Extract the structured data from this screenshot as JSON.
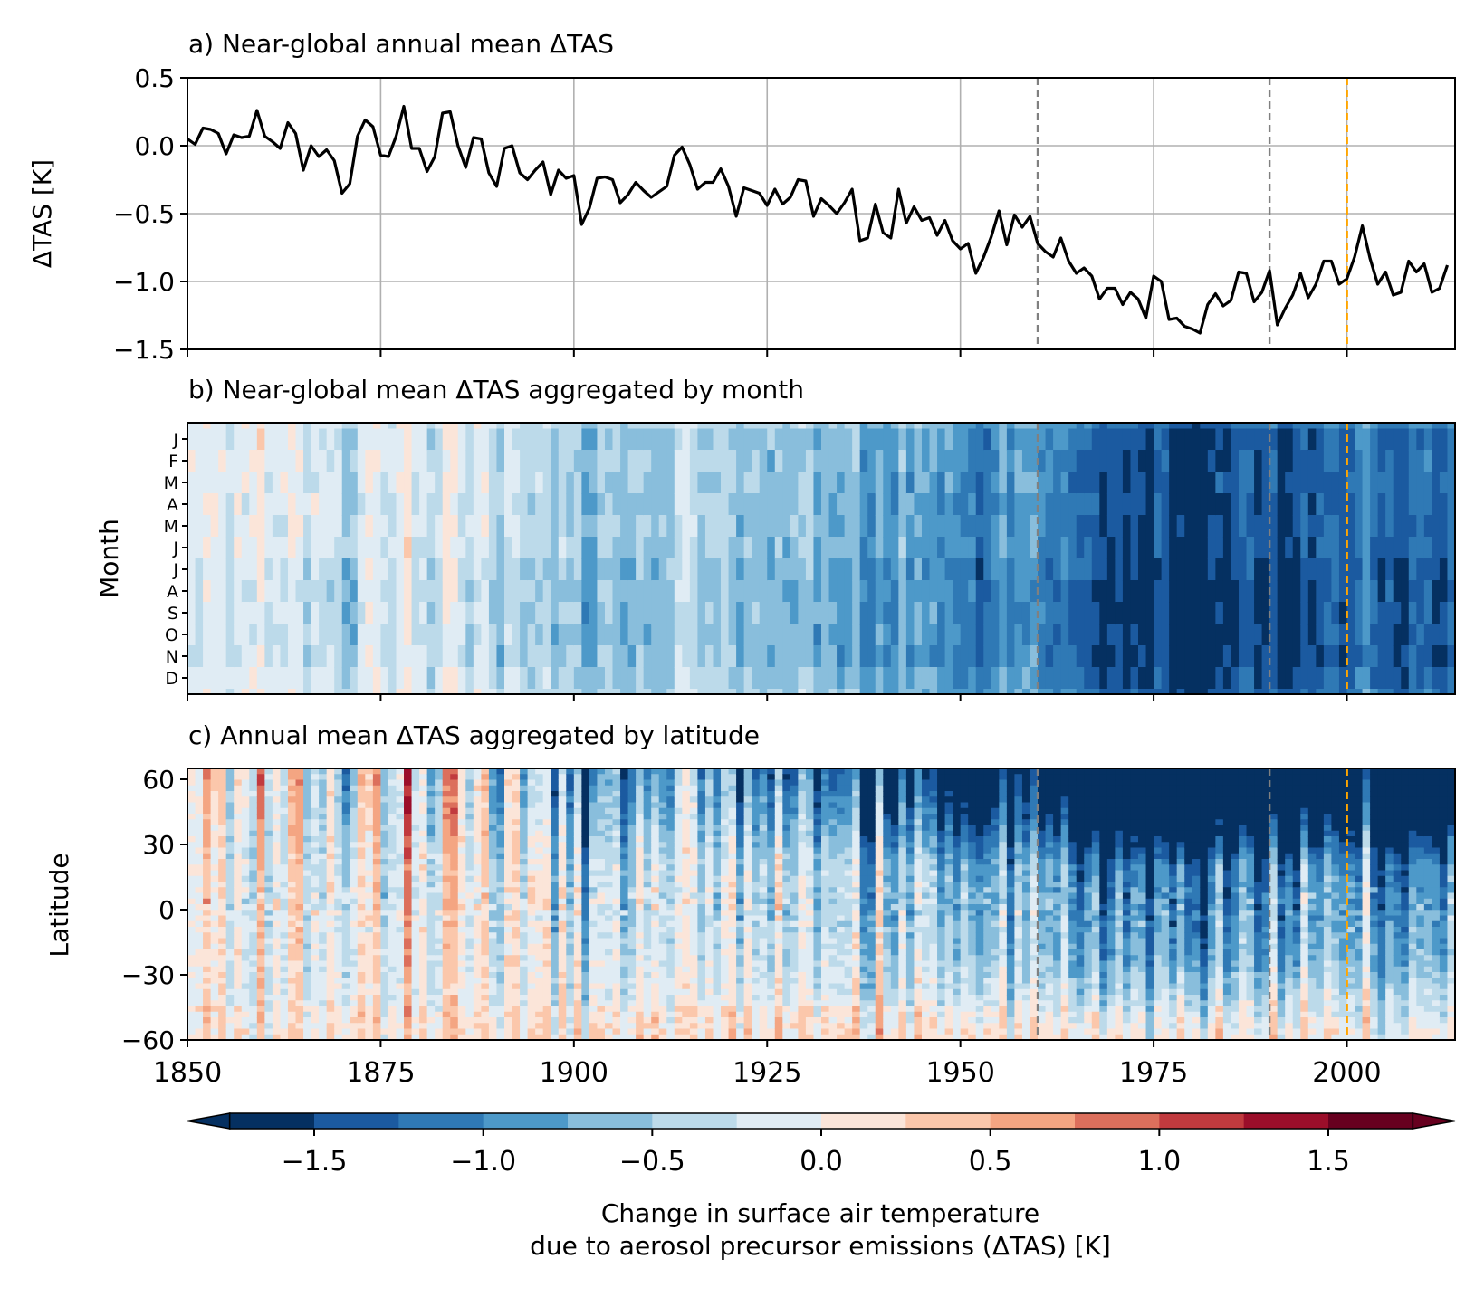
{
  "figure": {
    "colorbar": {
      "label_line1": "Change in surface air temperature",
      "label_line2": "due to aerosol precursor emissions (ΔTAS) [K]",
      "ticks": [
        "−1.5",
        "−1.0",
        "−0.5",
        "0.0",
        "0.5",
        "1.0",
        "1.5"
      ],
      "tick_values": [
        -1.5,
        -1.0,
        -0.5,
        0.0,
        0.5,
        1.0,
        1.5
      ],
      "range": [
        -1.875,
        1.875
      ],
      "levels": [
        -1.75,
        -1.5,
        -1.25,
        -1.0,
        -0.75,
        -0.5,
        -0.25,
        0.0,
        0.25,
        0.5,
        0.75,
        1.0,
        1.25,
        1.5,
        1.75
      ],
      "colors": [
        "#053061",
        "#1b5aa0",
        "#2f79b5",
        "#4d99c9",
        "#89bedc",
        "#bcdaea",
        "#e0ecf4",
        "#fbe5d9",
        "#fbc7ab",
        "#f4a582",
        "#dc6f5c",
        "#c13a3e",
        "#9b0e2a",
        "#67001f"
      ],
      "extend": "both"
    },
    "reference_lines": {
      "gray_years": [
        1960,
        1990
      ],
      "orange_year": 2000,
      "gray_color": "#808080",
      "orange_color": "#ffa500"
    }
  },
  "chart_data": [
    {
      "type": "line",
      "title": "a) Near-global annual mean ΔTAS",
      "xlabel": "",
      "ylabel": "ΔTAS [K]",
      "xlim": [
        1850,
        2014
      ],
      "ylim": [
        -1.5,
        0.5
      ],
      "grid": true,
      "xticks": [
        1850,
        1875,
        1900,
        1925,
        1950,
        1975,
        2000
      ],
      "yticks": [
        0.5,
        0.0,
        -0.5,
        -1.0,
        -1.5
      ],
      "ytick_labels": [
        "0.5",
        "0.0",
        "−0.5",
        "−1.0",
        "−1.5"
      ],
      "series": [
        {
          "color": "#000000",
          "x_start": 1850,
          "x_step": 1,
          "values": [
            0.05,
            0.01,
            0.13,
            0.12,
            0.09,
            -0.06,
            0.08,
            0.06,
            0.07,
            0.26,
            0.07,
            0.03,
            -0.02,
            0.17,
            0.09,
            -0.18,
            0.0,
            -0.08,
            -0.03,
            -0.11,
            -0.35,
            -0.28,
            0.07,
            0.19,
            0.14,
            -0.07,
            -0.08,
            0.07,
            0.29,
            -0.02,
            -0.02,
            -0.19,
            -0.08,
            0.24,
            0.25,
            0.0,
            -0.16,
            0.06,
            0.05,
            -0.2,
            -0.3,
            -0.02,
            0.0,
            -0.2,
            -0.25,
            -0.18,
            -0.12,
            -0.36,
            -0.18,
            -0.24,
            -0.22,
            -0.58,
            -0.46,
            -0.24,
            -0.23,
            -0.25,
            -0.42,
            -0.36,
            -0.27,
            -0.33,
            -0.38,
            -0.34,
            -0.3,
            -0.07,
            -0.01,
            -0.14,
            -0.32,
            -0.27,
            -0.27,
            -0.17,
            -0.3,
            -0.52,
            -0.31,
            -0.33,
            -0.35,
            -0.44,
            -0.32,
            -0.43,
            -0.38,
            -0.25,
            -0.26,
            -0.52,
            -0.39,
            -0.44,
            -0.5,
            -0.42,
            -0.32,
            -0.7,
            -0.68,
            -0.43,
            -0.64,
            -0.68,
            -0.32,
            -0.57,
            -0.45,
            -0.55,
            -0.53,
            -0.66,
            -0.55,
            -0.7,
            -0.76,
            -0.72,
            -0.94,
            -0.82,
            -0.67,
            -0.48,
            -0.73,
            -0.51,
            -0.6,
            -0.52,
            -0.72,
            -0.78,
            -0.82,
            -0.68,
            -0.85,
            -0.94,
            -0.9,
            -0.96,
            -1.13,
            -1.05,
            -1.05,
            -1.17,
            -1.08,
            -1.13,
            -1.27,
            -0.96,
            -1.0,
            -1.28,
            -1.27,
            -1.33,
            -1.35,
            -1.38,
            -1.17,
            -1.09,
            -1.18,
            -1.14,
            -0.93,
            -0.94,
            -1.15,
            -1.08,
            -0.92,
            -1.32,
            -1.2,
            -1.1,
            -0.94,
            -1.12,
            -1.02,
            -0.85,
            -0.85,
            -1.02,
            -0.98,
            -0.82,
            -0.59,
            -0.83,
            -1.02,
            -0.93,
            -1.1,
            -1.08,
            -0.85,
            -0.93,
            -0.87,
            -1.08,
            -1.05,
            -0.88
          ]
        }
      ]
    },
    {
      "type": "heatmap",
      "title": "b) Near-global mean ΔTAS aggregated by month",
      "xlabel": "",
      "ylabel": "Month",
      "xlim": [
        1850,
        2014
      ],
      "xticks": [
        1850,
        1875,
        1900,
        1925,
        1950,
        1975,
        2000
      ],
      "y_categories": [
        "J",
        "F",
        "M",
        "A",
        "M",
        "J",
        "J",
        "A",
        "S",
        "O",
        "N",
        "D"
      ],
      "values_note": "monthly values follow the annual-mean series of panel a with month-to-month variability"
    },
    {
      "type": "heatmap",
      "title": "c) Annual mean ΔTAS aggregated by latitude",
      "xlabel": "",
      "ylabel": "Latitude",
      "xlim": [
        1850,
        2014
      ],
      "ylim": [
        -60,
        65
      ],
      "xticks": [
        1850,
        1875,
        1900,
        1925,
        1950,
        1975,
        2000
      ],
      "xtick_labels": [
        "1850",
        "1875",
        "1900",
        "1925",
        "1950",
        "1975",
        "2000"
      ],
      "yticks": [
        60,
        30,
        0,
        -30,
        -60
      ],
      "ytick_labels": [
        "60",
        "30",
        "0",
        "−30",
        "−60"
      ]
    }
  ]
}
